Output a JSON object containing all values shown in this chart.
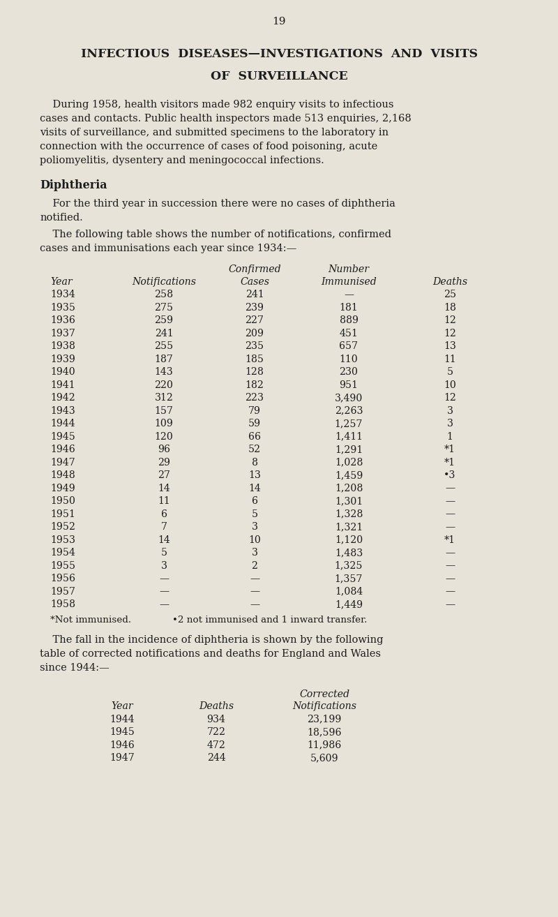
{
  "page_number": "19",
  "background_color": "#e8e3d8",
  "title_line1": "INFECTIOUS  DISEASES—INVESTIGATIONS  AND  VISITS",
  "title_line2": "OF  SURVEILLANCE",
  "section_heading": "Diphtheria",
  "table1_footnote1": "*Not immunised.",
  "table1_footnote2": "•2 not immunised and 1 inward transfer.",
  "table1_data": [
    [
      "1934",
      "258",
      "241",
      "—",
      "25"
    ],
    [
      "1935",
      "275",
      "239",
      "181",
      "18"
    ],
    [
      "1936",
      "259",
      "227",
      "889",
      "12"
    ],
    [
      "1937",
      "241",
      "209",
      "451",
      "12"
    ],
    [
      "1938",
      "255",
      "235",
      "657",
      "13"
    ],
    [
      "1939",
      "187",
      "185",
      "110",
      "11"
    ],
    [
      "1940",
      "143",
      "128",
      "230",
      "5"
    ],
    [
      "1941",
      "220",
      "182",
      "951",
      "10"
    ],
    [
      "1942",
      "312",
      "223",
      "3,490",
      "12"
    ],
    [
      "1943",
      "157",
      "79",
      "2,263",
      "3"
    ],
    [
      "1944",
      "109",
      "59",
      "1,257",
      "3"
    ],
    [
      "1945",
      "120",
      "66",
      "1,411",
      "1"
    ],
    [
      "1946",
      "96",
      "52",
      "1,291",
      "*1"
    ],
    [
      "1947",
      "29",
      "8",
      "1,028",
      "*1"
    ],
    [
      "1948",
      "27",
      "13",
      "1,459",
      "•3"
    ],
    [
      "1949",
      "14",
      "14",
      "1,208",
      "—"
    ],
    [
      "1950",
      "11",
      "6",
      "1,301",
      "—"
    ],
    [
      "1951",
      "6",
      "5",
      "1,328",
      "—"
    ],
    [
      "1952",
      "7",
      "3",
      "1,321",
      "—"
    ],
    [
      "1953",
      "14",
      "10",
      "1,120",
      "*1"
    ],
    [
      "1954",
      "5",
      "3",
      "1,483",
      "—"
    ],
    [
      "1955",
      "3",
      "2",
      "1,325",
      "—"
    ],
    [
      "1956",
      "—",
      "—",
      "1,357",
      "—"
    ],
    [
      "1957",
      "—",
      "—",
      "1,084",
      "—"
    ],
    [
      "1958",
      "—",
      "—",
      "1,449",
      "—"
    ]
  ],
  "table2_data": [
    [
      "1944",
      "934",
      "23,199"
    ],
    [
      "1945",
      "722",
      "18,596"
    ],
    [
      "1946",
      "472",
      "11,986"
    ],
    [
      "1947",
      "244",
      "5,609"
    ]
  ],
  "text_color": "#1c1c1c",
  "font_size_body": 10.5,
  "font_size_title": 12.5,
  "font_size_section": 11.5,
  "font_size_table": 10.2,
  "font_size_pagenum": 11
}
